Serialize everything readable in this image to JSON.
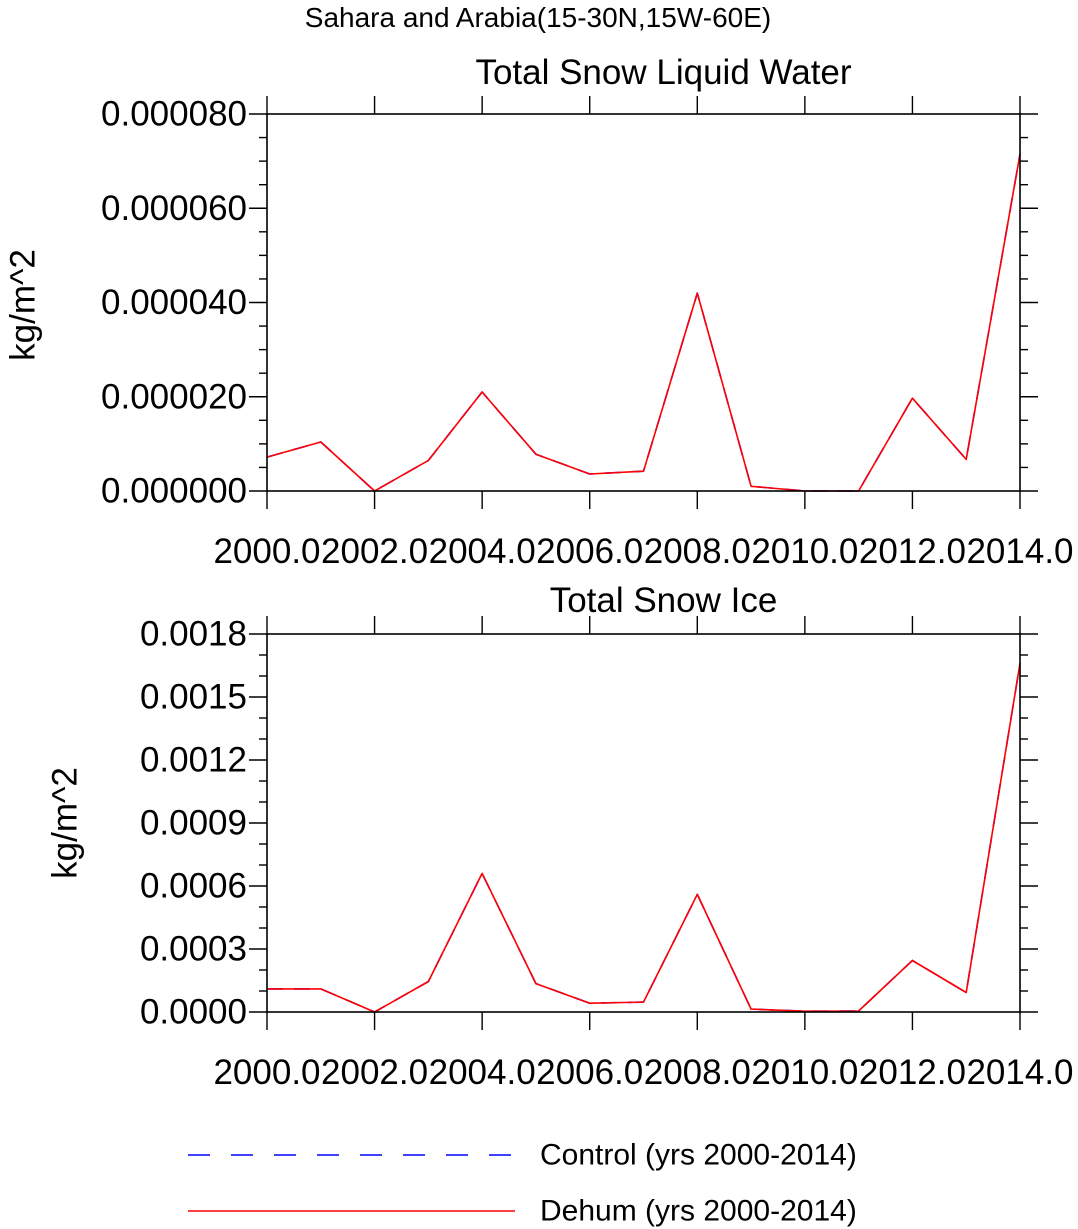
{
  "figure": {
    "title": "Sahara and Arabia(15-30N,15W-60E)"
  },
  "chart_data": [
    {
      "type": "line",
      "title": "Total Snow Liquid Water",
      "xlabel": "",
      "ylabel": "kg/m^2",
      "xlim": [
        2000,
        2014
      ],
      "ylim": [
        0,
        8e-05
      ],
      "x": [
        2000,
        2001,
        2002,
        2003,
        2004,
        2005,
        2006,
        2007,
        2008,
        2009,
        2010,
        2011,
        2012,
        2013,
        2014
      ],
      "x_ticks": [
        2000,
        2002,
        2004,
        2006,
        2008,
        2010,
        2012,
        2014
      ],
      "x_tick_labels": [
        "2000.0",
        "2002.0",
        "2004.0",
        "2006.0",
        "2008.0",
        "2010.0",
        "2012.0",
        "2014.0"
      ],
      "y_ticks": [
        0,
        2e-05,
        4e-05,
        6e-05,
        8e-05
      ],
      "y_tick_labels": [
        "0.000000",
        "0.000020",
        "0.000040",
        "0.000060",
        "0.000080"
      ],
      "y_minor_step": 5e-06,
      "grid": false,
      "series": [
        {
          "name": "Control (yrs 2000-2014)",
          "color": "#0000ff",
          "dash": "dashed",
          "values": [
            7.2e-06,
            1.04e-05,
            0.0,
            6.5e-06,
            2.1e-05,
            7.8e-06,
            3.6e-06,
            4.2e-06,
            4.2e-05,
            1e-06,
            0.0,
            0.0,
            1.97e-05,
            6.7e-06,
            7.15e-05
          ]
        },
        {
          "name": "Dehum (yrs 2000-2014)",
          "color": "#ff0000",
          "dash": "solid",
          "values": [
            7.2e-06,
            1.04e-05,
            0.0,
            6.5e-06,
            2.1e-05,
            7.8e-06,
            3.6e-06,
            4.2e-06,
            4.2e-05,
            1e-06,
            0.0,
            0.0,
            1.97e-05,
            6.7e-06,
            7.15e-05
          ]
        }
      ]
    },
    {
      "type": "line",
      "title": "Total Snow Ice",
      "xlabel": "",
      "ylabel": "kg/m^2",
      "xlim": [
        2000,
        2014
      ],
      "ylim": [
        0,
        0.0018
      ],
      "x": [
        2000,
        2001,
        2002,
        2003,
        2004,
        2005,
        2006,
        2007,
        2008,
        2009,
        2010,
        2011,
        2012,
        2013,
        2014
      ],
      "x_ticks": [
        2000,
        2002,
        2004,
        2006,
        2008,
        2010,
        2012,
        2014
      ],
      "x_tick_labels": [
        "2000.0",
        "2002.0",
        "2004.0",
        "2006.0",
        "2008.0",
        "2010.0",
        "2012.0",
        "2014.0"
      ],
      "y_ticks": [
        0,
        0.0003,
        0.0006,
        0.0009,
        0.0012,
        0.0015,
        0.0018
      ],
      "y_tick_labels": [
        "0.0000",
        "0.0003",
        "0.0006",
        "0.0009",
        "0.0012",
        "0.0015",
        "0.0018"
      ],
      "y_minor_step": 0.0001,
      "grid": false,
      "series": [
        {
          "name": "Control (yrs 2000-2014)",
          "color": "#0000ff",
          "dash": "dashed",
          "values": [
            0.00011,
            0.00011,
            0.0,
            0.000145,
            0.00066,
            0.000135,
            4.2e-05,
            4.7e-05,
            0.00056,
            1.4e-05,
            4e-06,
            5e-06,
            0.000245,
            9.3e-05,
            0.00166
          ]
        },
        {
          "name": "Dehum (yrs 2000-2014)",
          "color": "#ff0000",
          "dash": "solid",
          "values": [
            0.00011,
            0.00011,
            0.0,
            0.000145,
            0.00066,
            0.000135,
            4.2e-05,
            4.7e-05,
            0.00056,
            1.4e-05,
            4e-06,
            5e-06,
            0.000245,
            9.3e-05,
            0.00166
          ]
        }
      ]
    }
  ],
  "legend": {
    "placement": "bottom",
    "items": [
      {
        "label": "Control (yrs 2000-2014)",
        "color": "#0000ff",
        "dash": "dashed"
      },
      {
        "label": "Dehum (yrs 2000-2014)",
        "color": "#ff0000",
        "dash": "solid"
      }
    ]
  }
}
